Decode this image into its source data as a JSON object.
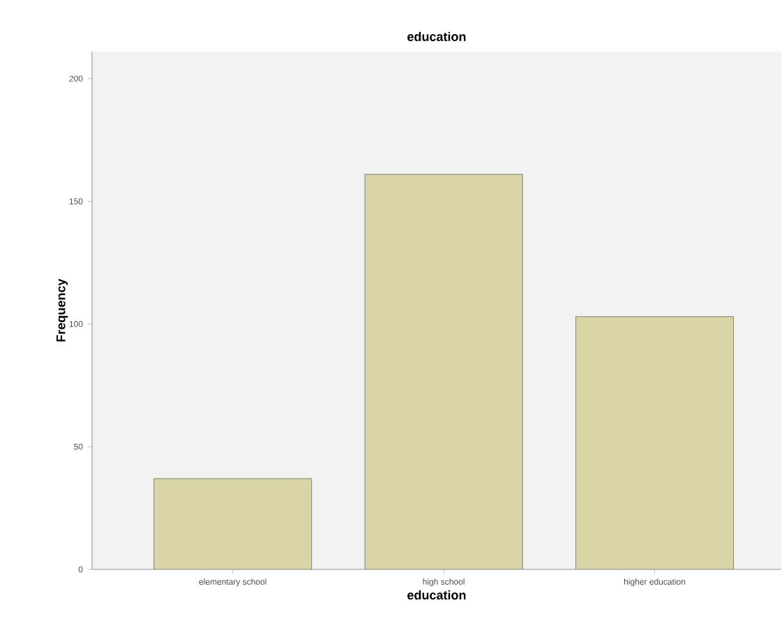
{
  "chart_data": {
    "type": "bar",
    "title": "education",
    "xlabel": "education",
    "ylabel": "Frequency",
    "categories": [
      "elementary school",
      "high school",
      "higher education"
    ],
    "values": [
      37,
      161,
      103
    ],
    "color": "#d9d5a6",
    "ylim": [
      0,
      211
    ],
    "yticks": [
      0,
      50,
      100,
      150,
      200
    ],
    "grid": false
  }
}
